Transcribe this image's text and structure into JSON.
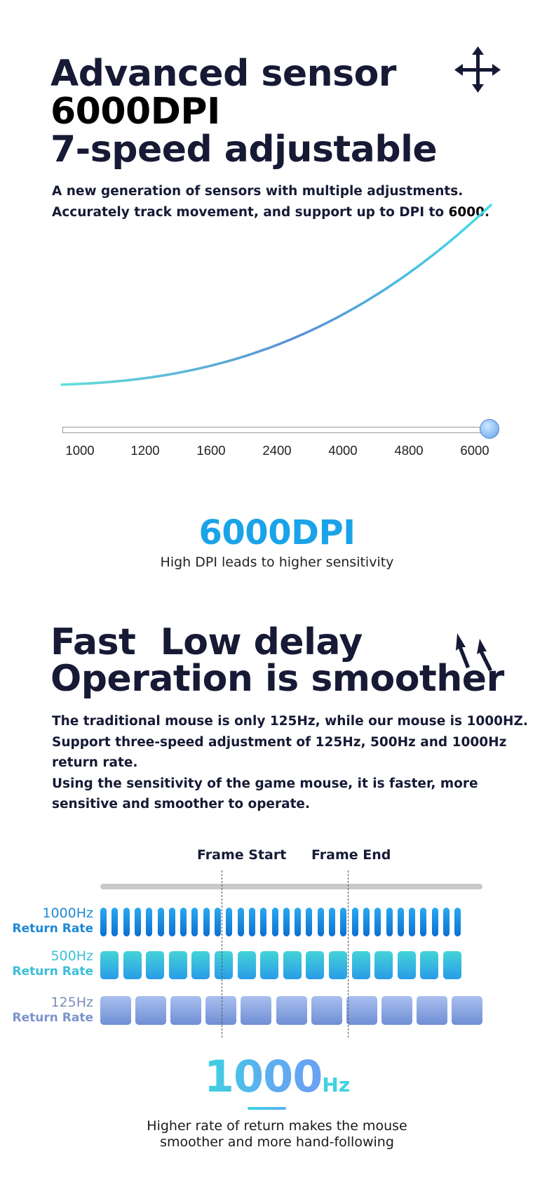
{
  "section1": {
    "title_line1": "Advanced sensor",
    "title_line2": "6000DPI",
    "title_line3": "7-speed adjustable",
    "desc_line1": "A new generation of sensors with multiple adjustments.",
    "desc_line2_text": "Accurately track movement, and support up to DPI to ",
    "desc_line2_highlight": "6000",
    "desc_line2_end": ".",
    "icon": "move-arrows-icon",
    "dpi_steps": [
      "1000",
      "1200",
      "1600",
      "2400",
      "4000",
      "4800",
      "6000"
    ],
    "slider_level": 1.0,
    "curve_colors": [
      "#5fe0d8",
      "#5a8fd6",
      "#3ee0e8"
    ]
  },
  "dpi_highlight": {
    "value": "6000DPI",
    "caption": "High DPI leads to higher sensitivity",
    "color": "#1aa3e8"
  },
  "section2": {
    "title_line1": "Fast  Low delay",
    "title_line2": "Operation is smoother",
    "icon": "cursor-arrows-icon",
    "desc_lines": [
      "The traditional mouse is only 125Hz, while our mouse is 1000HZ.",
      "Support three-speed adjustment of 125Hz, 500Hz and 1000Hz",
      "return rate.",
      "Using the sensitivity of the game mouse, it is faster, more",
      "sensitive and smoother to operate."
    ]
  },
  "rate_diagram": {
    "frame_start": "Frame Start",
    "frame_end": "Frame End",
    "rates": [
      {
        "hz": "1000Hz",
        "label": "Return Rate",
        "color": "#1e88d6"
      },
      {
        "hz": "500Hz",
        "label": "Return Rate",
        "color": "#39bfd6"
      },
      {
        "hz": "125Hz",
        "label": "Return Rate",
        "color": "#6f8fcf"
      }
    ]
  },
  "rate_highlight": {
    "value": "1000",
    "unit": "Hz",
    "caption_line1": "Higher rate of return makes the mouse",
    "caption_line2": "smoother and more hand-following"
  }
}
